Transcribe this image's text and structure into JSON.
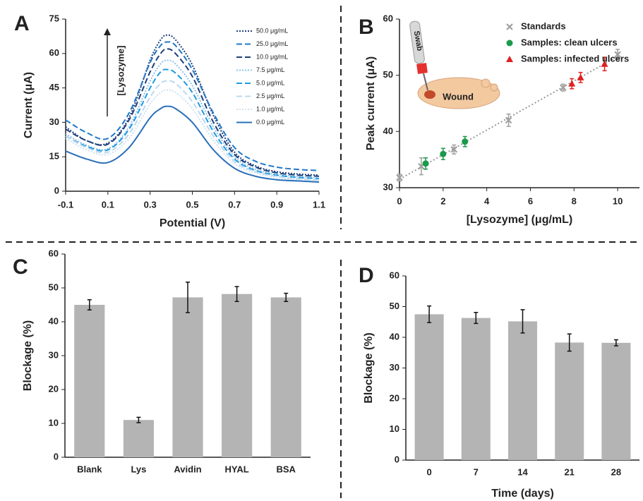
{
  "chart_data": [
    {
      "type": "line",
      "panel": "A",
      "x_label": "Potential (V)",
      "y_label": "Current (μA)",
      "annotation": "[Lysozyme]",
      "x": [
        -0.1,
        0,
        0.1,
        0.2,
        0.3,
        0.35,
        0.38,
        0.42,
        0.5,
        0.6,
        0.7,
        0.8,
        0.9,
        1.0,
        1.1
      ],
      "xlim": [
        -0.1,
        1.1
      ],
      "xticks": [
        -0.1,
        0.1,
        0.3,
        0.5,
        0.7,
        0.9,
        1.1
      ],
      "ylim": [
        0,
        75
      ],
      "yticks": [
        0,
        15,
        30,
        45,
        60,
        75
      ],
      "legend": "upper right",
      "series": [
        {
          "name": "50.0 μg/mL",
          "color": "#1f3f7a",
          "style": "dotted",
          "values": [
            28,
            22,
            21,
            32,
            57,
            66,
            68,
            66,
            55,
            33,
            17,
            11,
            8.5,
            7.5,
            7
          ]
        },
        {
          "name": "25.0 μg/mL",
          "color": "#1f78c8",
          "style": "dashed",
          "values": [
            31,
            25.5,
            23,
            34,
            56,
            63.5,
            65,
            63.5,
            53,
            34,
            19,
            13,
            10.5,
            9.5,
            9
          ]
        },
        {
          "name": "10.0 μg/mL",
          "color": "#1f3f7a",
          "style": "dashed",
          "values": [
            27,
            22,
            20.5,
            31,
            52,
            60,
            62,
            60,
            50,
            30,
            16,
            10.5,
            8,
            7,
            6.5
          ]
        },
        {
          "name": "7.5 μg/mL",
          "color": "#8ec0e8",
          "style": "dotted",
          "values": [
            25,
            20,
            18.5,
            28,
            48,
            55.5,
            57,
            55.5,
            46,
            28,
            15,
            9.5,
            7.5,
            6.5,
            6
          ]
        },
        {
          "name": "5.0 μg/mL",
          "color": "#1f9ae0",
          "style": "dashed",
          "values": [
            24,
            19.5,
            18,
            27,
            45,
            52,
            53,
            51.5,
            43,
            26,
            14,
            9,
            7,
            6,
            5.5
          ]
        },
        {
          "name": "2.5 μg/mL",
          "color": "#bcd8ee",
          "style": "dashed",
          "values": [
            24,
            19,
            17,
            25,
            41,
            47,
            48,
            47,
            39,
            24,
            13,
            8.5,
            6.5,
            5.5,
            5
          ]
        },
        {
          "name": "1.0 μg/mL",
          "color": "#cfe0f0",
          "style": "dotted",
          "values": [
            23,
            18,
            16,
            23,
            38,
            43,
            44,
            43,
            36,
            22,
            12,
            8,
            6,
            5,
            4.5
          ]
        },
        {
          "name": "0.0 μg/mL",
          "color": "#2a6fb8",
          "style": "solid",
          "values": [
            17.5,
            14,
            12.5,
            19,
            32,
            36,
            37,
            36,
            30,
            18,
            10,
            6.5,
            5,
            4.5,
            4
          ]
        }
      ]
    },
    {
      "type": "scatter",
      "panel": "B",
      "x_label": "[Lysozyme] (μg/mL)",
      "y_label": "Peak current (μA)",
      "inset_labels": [
        "Swab",
        "Wound"
      ],
      "xlim": [
        0,
        11
      ],
      "xticks": [
        0,
        2,
        4,
        6,
        8,
        10
      ],
      "ylim": [
        30,
        60
      ],
      "yticks": [
        30,
        40,
        50,
        60
      ],
      "trendline": true,
      "legend": "upper left",
      "series": [
        {
          "name": "Standards",
          "color": "#a0a0a0",
          "marker": "x",
          "x": [
            0,
            1.0,
            2.5,
            5.0,
            7.5,
            10
          ],
          "values": [
            31.8,
            33.8,
            36.8,
            42,
            47.8,
            53.7
          ],
          "errors": [
            0.6,
            1.5,
            0.8,
            1.1,
            0.6,
            0.9
          ]
        },
        {
          "name": "Samples: clean ulcers",
          "color": "#1a9a4a",
          "marker": "circle",
          "x": [
            1.2,
            2.0,
            3.0
          ],
          "values": [
            34.3,
            36,
            38.2
          ],
          "errors": [
            1.0,
            1.0,
            0.9
          ]
        },
        {
          "name": "Samples: infected ulcers",
          "color": "#e02020",
          "marker": "triangle",
          "x": [
            7.9,
            8.3,
            9.4
          ],
          "values": [
            48.5,
            49.6,
            52
          ],
          "errors": [
            0.9,
            0.9,
            1.2
          ]
        }
      ]
    },
    {
      "type": "bar",
      "panel": "C",
      "y_label": "Blockage (%)",
      "color": "#b4b4b4",
      "categories": [
        "Blank",
        "Lys",
        "Avidin",
        "HYAL",
        "BSA"
      ],
      "values": [
        45,
        11,
        47.2,
        48.2,
        47.2
      ],
      "errors": [
        1.5,
        0.8,
        4.5,
        2.2,
        1.2
      ],
      "ylim": [
        0,
        60
      ],
      "yticks": [
        0,
        10,
        20,
        30,
        40,
        50,
        60
      ]
    },
    {
      "type": "bar",
      "panel": "D",
      "x_label": "Time (days)",
      "y_label": "Blockage (%)",
      "color": "#b4b4b4",
      "categories": [
        "0",
        "7",
        "14",
        "21",
        "28"
      ],
      "values": [
        47.5,
        46.3,
        45.2,
        38.3,
        38.2
      ],
      "errors": [
        2.7,
        1.8,
        3.8,
        2.8,
        1.0
      ],
      "ylim": [
        0,
        60
      ],
      "yticks": [
        0,
        10,
        20,
        30,
        40,
        50,
        60
      ]
    }
  ]
}
